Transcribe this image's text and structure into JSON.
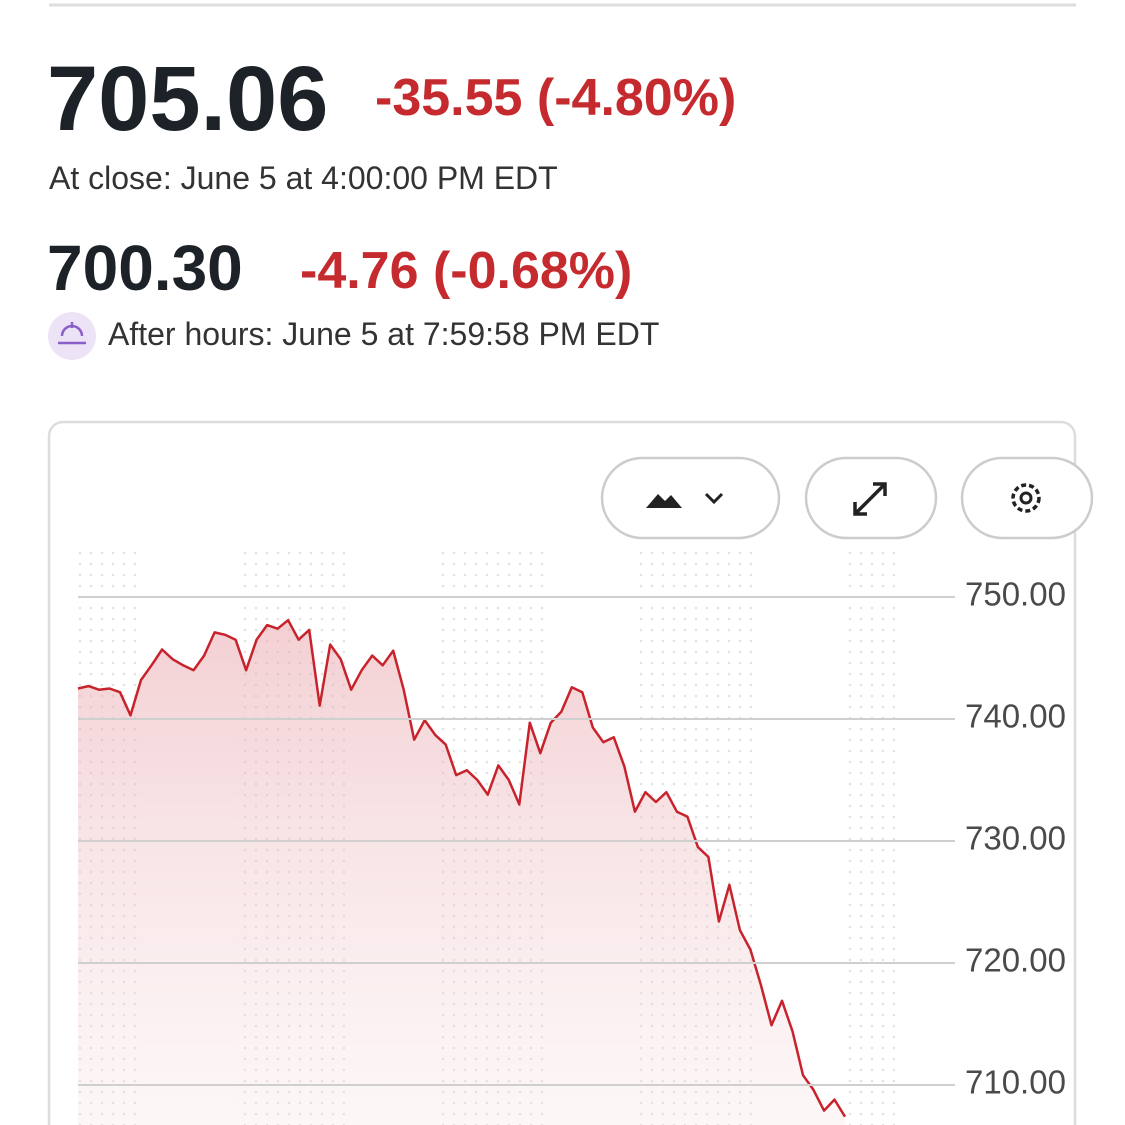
{
  "header": {
    "price": "705.06",
    "change": "-35.55 (-4.80%)",
    "close_time": "At close: June 5 at 4:00:00 PM EDT",
    "after_price": "700.30",
    "after_change": "-4.76 (-0.68%)",
    "after_time": "After hours: June 5 at 7:59:58 PM EDT"
  },
  "chart_data": {
    "type": "line",
    "color": "#c8232c",
    "values": [
      742.5,
      742.7,
      742.4,
      742.5,
      742.2,
      740.3,
      743.2,
      744.4,
      745.7,
      744.9,
      744.4,
      744.0,
      745.2,
      747.1,
      746.9,
      746.5,
      744.0,
      746.5,
      747.7,
      747.4,
      748.1,
      746.5,
      747.3,
      741.1,
      746.1,
      744.9,
      742.4,
      744.0,
      745.2,
      744.4,
      745.6,
      742.4,
      738.3,
      739.9,
      738.7,
      737.9,
      735.4,
      735.8,
      735.0,
      733.8,
      736.2,
      735.0,
      733.0,
      739.7,
      737.2,
      739.7,
      740.6,
      742.6,
      742.2,
      739.3,
      738.1,
      738.5,
      736.1,
      732.4,
      734.0,
      733.2,
      734.0,
      732.4,
      732.0,
      729.5,
      728.7,
      723.4,
      726.4,
      722.7,
      721.1,
      718.2,
      714.9,
      716.9,
      714.4,
      710.8,
      709.6,
      707.9,
      708.8,
      707.4
    ],
    "ylim": [
      706.5,
      752
    ],
    "yticks": [
      {
        "value": 750,
        "label": "750.00"
      },
      {
        "value": 740,
        "label": "740.00"
      },
      {
        "value": 730,
        "label": "730.00"
      },
      {
        "value": 720,
        "label": "720.00"
      },
      {
        "value": 710,
        "label": "710.00"
      }
    ],
    "grid": true
  }
}
